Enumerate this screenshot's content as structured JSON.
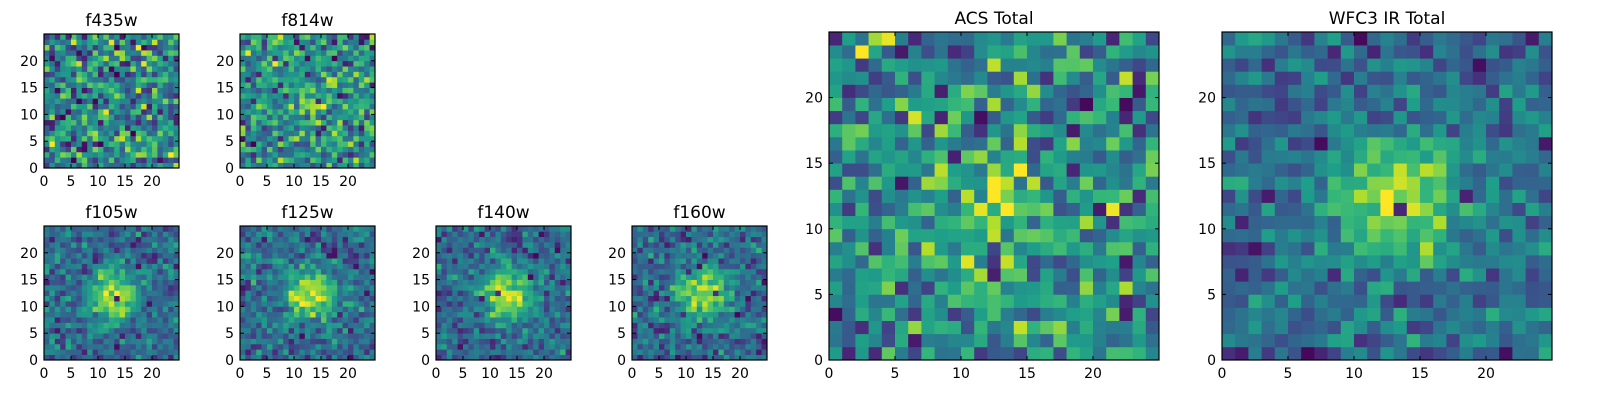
{
  "figure_title": "",
  "chart_data": [
    {
      "type": "heatmap",
      "title": "f435w",
      "grid_size": 25,
      "pattern": "noise",
      "seed": 11,
      "xticks": [
        0,
        5,
        10,
        15,
        20
      ],
      "yticks": [
        0,
        5,
        10,
        15,
        20
      ],
      "xlim": [
        0,
        25
      ],
      "ylim": [
        0,
        25
      ],
      "colormap": "viridis"
    },
    {
      "type": "heatmap",
      "title": "f814w",
      "grid_size": 25,
      "pattern": "weak-source",
      "seed": 23,
      "xticks": [
        0,
        5,
        10,
        15,
        20
      ],
      "yticks": [
        0,
        5,
        10,
        15,
        20
      ],
      "xlim": [
        0,
        25
      ],
      "ylim": [
        0,
        25
      ],
      "colormap": "viridis"
    },
    {
      "type": "heatmap",
      "title": "f105w",
      "grid_size": 25,
      "pattern": "source",
      "seed": 37,
      "xticks": [
        0,
        5,
        10,
        15,
        20
      ],
      "yticks": [
        0,
        5,
        10,
        15,
        20
      ],
      "xlim": [
        0,
        25
      ],
      "ylim": [
        0,
        25
      ],
      "colormap": "viridis"
    },
    {
      "type": "heatmap",
      "title": "f125w",
      "grid_size": 25,
      "pattern": "source",
      "seed": 41,
      "xticks": [
        0,
        5,
        10,
        15,
        20
      ],
      "yticks": [
        0,
        5,
        10,
        15,
        20
      ],
      "xlim": [
        0,
        25
      ],
      "ylim": [
        0,
        25
      ],
      "colormap": "viridis"
    },
    {
      "type": "heatmap",
      "title": "f140w",
      "grid_size": 25,
      "pattern": "source",
      "seed": 53,
      "xticks": [
        0,
        5,
        10,
        15,
        20
      ],
      "yticks": [
        0,
        5,
        10,
        15,
        20
      ],
      "xlim": [
        0,
        25
      ],
      "ylim": [
        0,
        25
      ],
      "colormap": "viridis"
    },
    {
      "type": "heatmap",
      "title": "f160w",
      "grid_size": 25,
      "pattern": "source",
      "seed": 67,
      "xticks": [
        0,
        5,
        10,
        15,
        20
      ],
      "yticks": [
        0,
        5,
        10,
        15,
        20
      ],
      "xlim": [
        0,
        25
      ],
      "ylim": [
        0,
        25
      ],
      "colormap": "viridis"
    },
    {
      "type": "heatmap",
      "title": "ACS Total",
      "grid_size": 25,
      "pattern": "weak-source",
      "seed": 79,
      "xticks": [
        0,
        5,
        10,
        15,
        20
      ],
      "yticks": [
        0,
        5,
        10,
        15,
        20
      ],
      "xlim": [
        0,
        25
      ],
      "ylim": [
        0,
        25
      ],
      "colormap": "viridis"
    },
    {
      "type": "heatmap",
      "title": "WFC3 IR Total",
      "grid_size": 25,
      "pattern": "source",
      "seed": 97,
      "xticks": [
        0,
        5,
        10,
        15,
        20
      ],
      "yticks": [
        0,
        5,
        10,
        15,
        20
      ],
      "xlim": [
        0,
        25
      ],
      "ylim": [
        0,
        25
      ],
      "colormap": "viridis"
    }
  ]
}
